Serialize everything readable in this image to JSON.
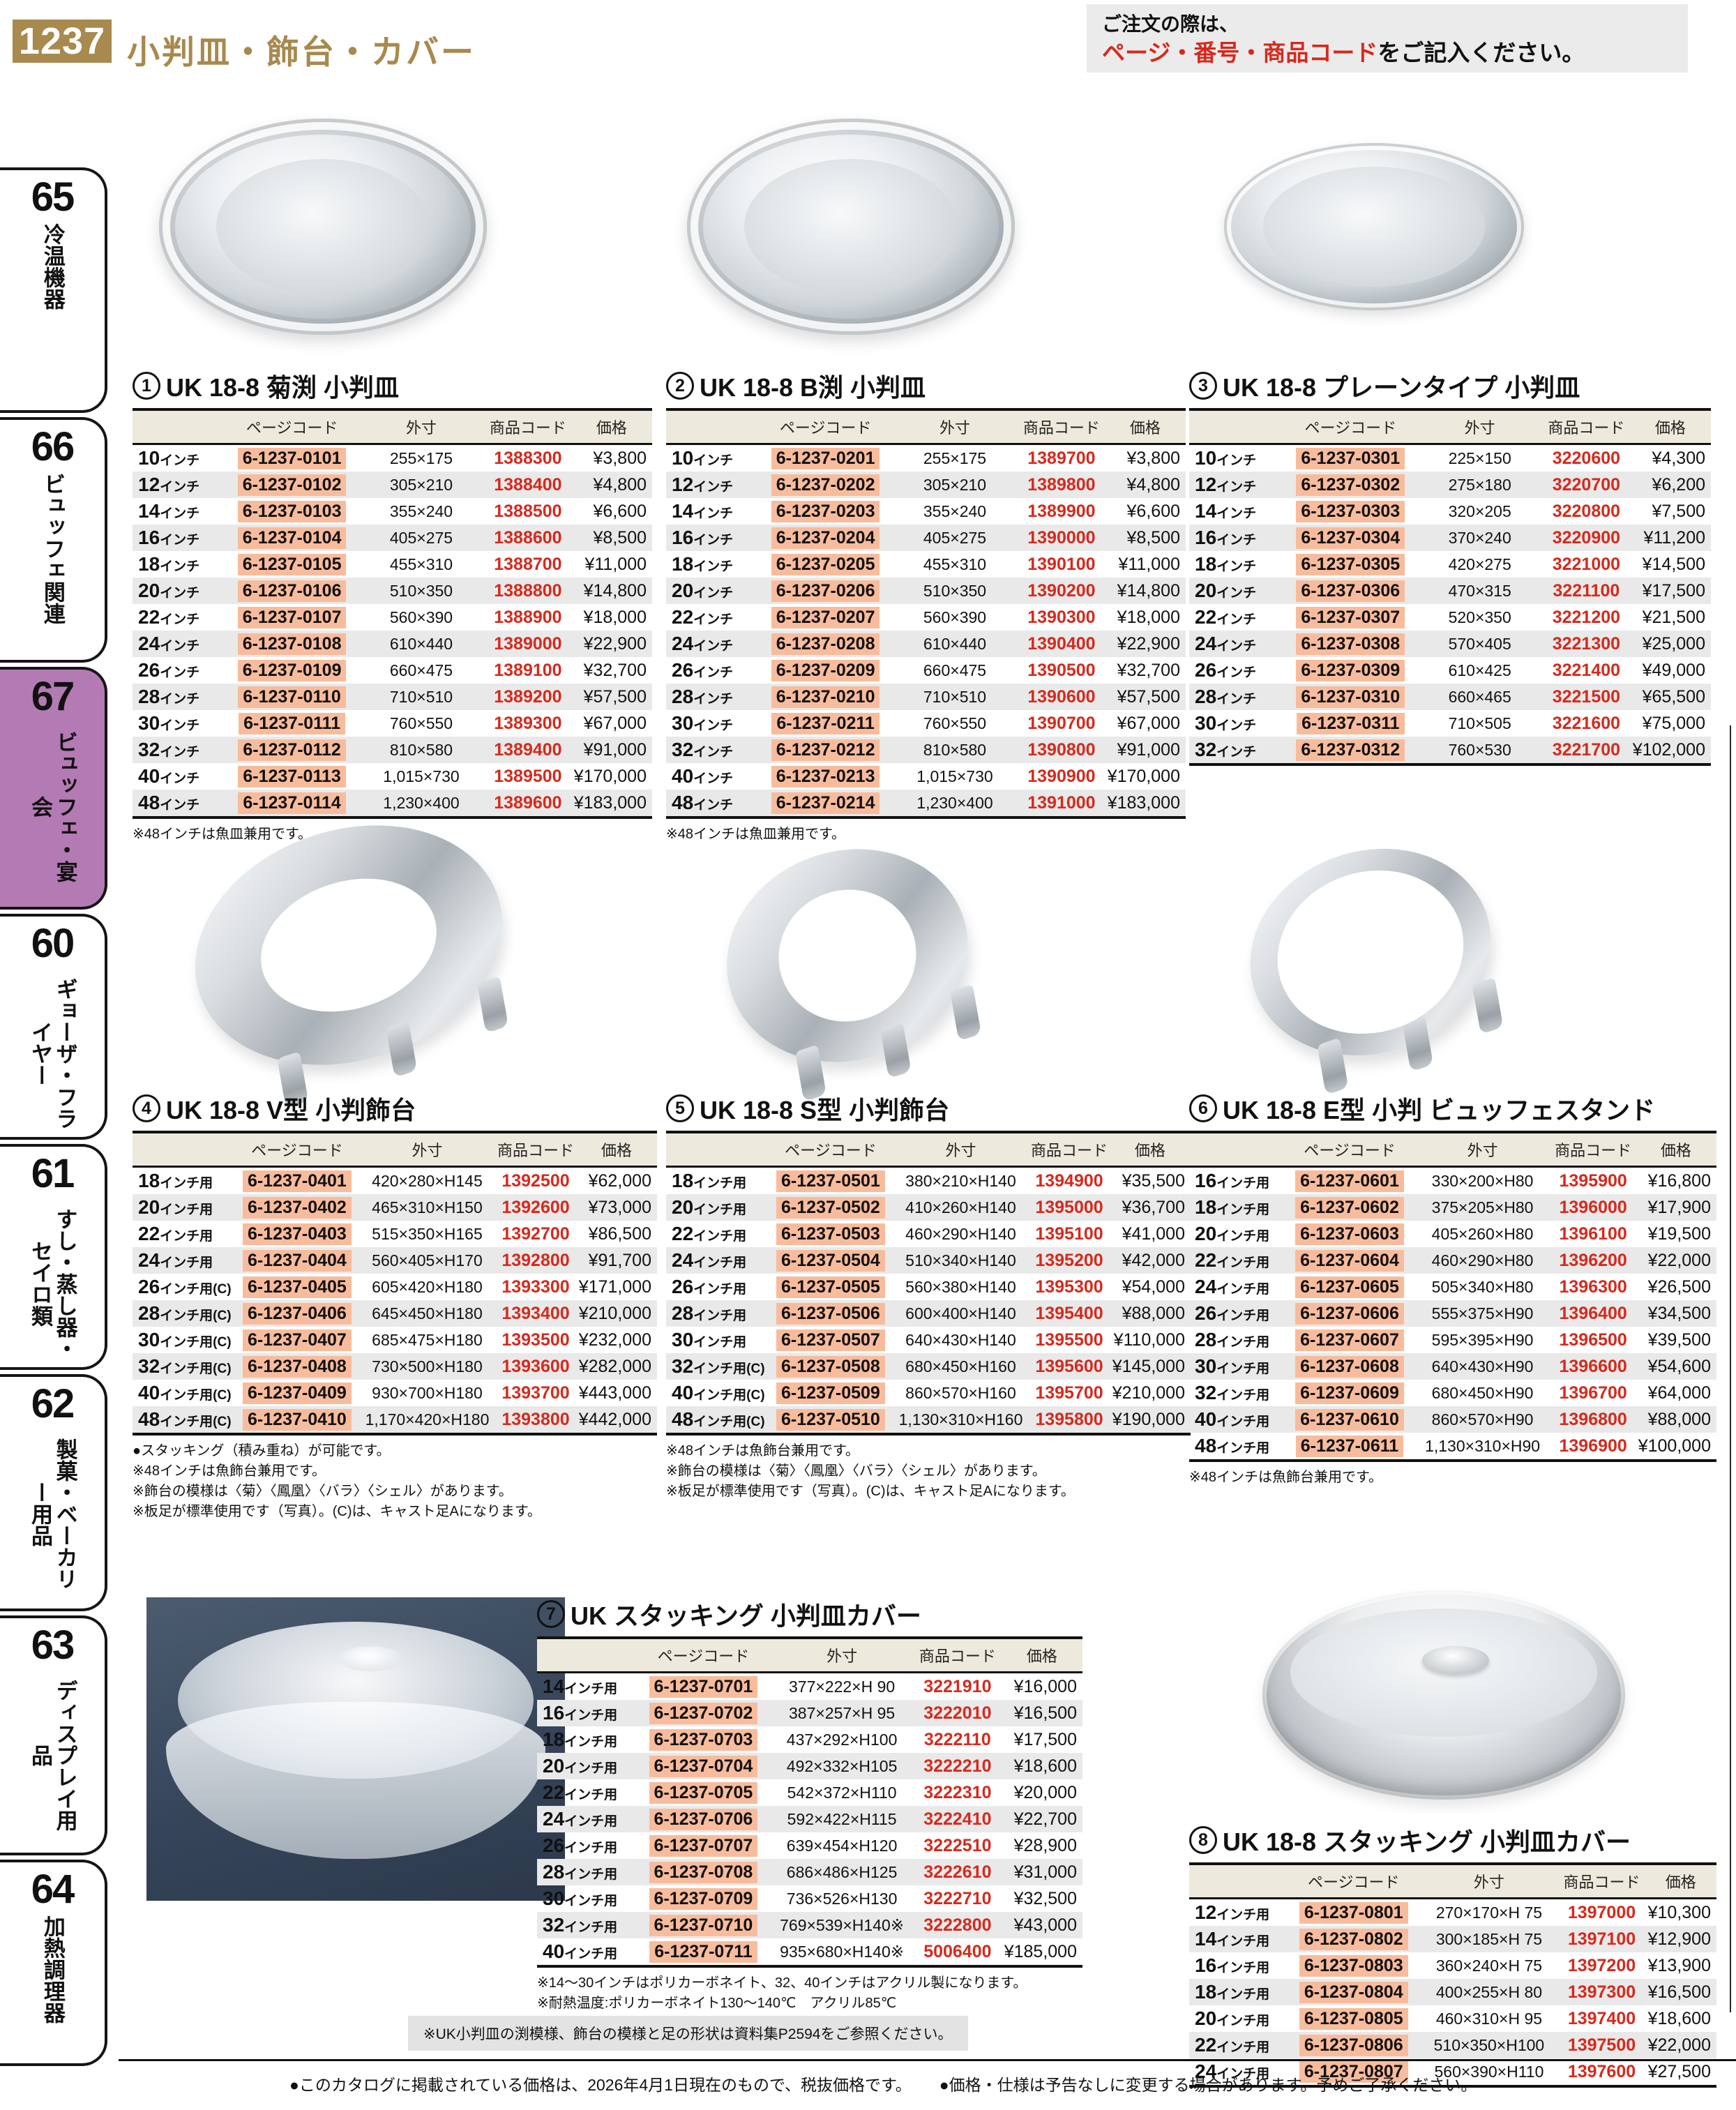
{
  "header": {
    "page_number": "1237",
    "title": "小判皿・飾台・カバー",
    "order_note_line1": "ご注文の際は、",
    "order_note_line2_red": "ページ・番号・商品コード",
    "order_note_line2_rest": "をご記入ください。"
  },
  "sidebar": {
    "items": [
      {
        "number": "65",
        "label": "冷温機器",
        "active": false
      },
      {
        "number": "66",
        "label": "ビュッフェ関連",
        "active": false
      },
      {
        "number": "67",
        "label": "ビュッフェ・宴会",
        "active": true
      },
      {
        "number": "60",
        "label": "ギョーザ・フライヤー",
        "active": false
      },
      {
        "number": "61",
        "label": "すし・蒸し器・セイロ類",
        "active": false
      },
      {
        "number": "62",
        "label": "製菓・ベーカリー用品",
        "active": false
      },
      {
        "number": "63",
        "label": "ディスプレイ用品",
        "active": false
      },
      {
        "number": "64",
        "label": "加熱調理器",
        "active": false
      }
    ]
  },
  "table_columns": [
    "ページコード",
    "外寸",
    "商品コード",
    "価格"
  ],
  "products": [
    {
      "number": "1",
      "title": "UK 18-8 菊渕 小判皿",
      "rows": [
        [
          "10インチ",
          "6-1237-0101",
          "255×175",
          "1388300",
          "¥3,800"
        ],
        [
          "12インチ",
          "6-1237-0102",
          "305×210",
          "1388400",
          "¥4,800"
        ],
        [
          "14インチ",
          "6-1237-0103",
          "355×240",
          "1388500",
          "¥6,600"
        ],
        [
          "16インチ",
          "6-1237-0104",
          "405×275",
          "1388600",
          "¥8,500"
        ],
        [
          "18インチ",
          "6-1237-0105",
          "455×310",
          "1388700",
          "¥11,000"
        ],
        [
          "20インチ",
          "6-1237-0106",
          "510×350",
          "1388800",
          "¥14,800"
        ],
        [
          "22インチ",
          "6-1237-0107",
          "560×390",
          "1388900",
          "¥18,000"
        ],
        [
          "24インチ",
          "6-1237-0108",
          "610×440",
          "1389000",
          "¥22,900"
        ],
        [
          "26インチ",
          "6-1237-0109",
          "660×475",
          "1389100",
          "¥32,700"
        ],
        [
          "28インチ",
          "6-1237-0110",
          "710×510",
          "1389200",
          "¥57,500"
        ],
        [
          "30インチ",
          "6-1237-0111",
          "760×550",
          "1389300",
          "¥67,000"
        ],
        [
          "32インチ",
          "6-1237-0112",
          "810×580",
          "1389400",
          "¥91,000"
        ],
        [
          "40インチ",
          "6-1237-0113",
          "1,015×730",
          "1389500",
          "¥170,000"
        ],
        [
          "48インチ",
          "6-1237-0114",
          "1,230×400",
          "1389600",
          "¥183,000"
        ]
      ],
      "notes": [
        "※48インチは魚皿兼用です。"
      ]
    },
    {
      "number": "2",
      "title": "UK 18-8 B渕 小判皿",
      "rows": [
        [
          "10インチ",
          "6-1237-0201",
          "255×175",
          "1389700",
          "¥3,800"
        ],
        [
          "12インチ",
          "6-1237-0202",
          "305×210",
          "1389800",
          "¥4,800"
        ],
        [
          "14インチ",
          "6-1237-0203",
          "355×240",
          "1389900",
          "¥6,600"
        ],
        [
          "16インチ",
          "6-1237-0204",
          "405×275",
          "1390000",
          "¥8,500"
        ],
        [
          "18インチ",
          "6-1237-0205",
          "455×310",
          "1390100",
          "¥11,000"
        ],
        [
          "20インチ",
          "6-1237-0206",
          "510×350",
          "1390200",
          "¥14,800"
        ],
        [
          "22インチ",
          "6-1237-0207",
          "560×390",
          "1390300",
          "¥18,000"
        ],
        [
          "24インチ",
          "6-1237-0208",
          "610×440",
          "1390400",
          "¥22,900"
        ],
        [
          "26インチ",
          "6-1237-0209",
          "660×475",
          "1390500",
          "¥32,700"
        ],
        [
          "28インチ",
          "6-1237-0210",
          "710×510",
          "1390600",
          "¥57,500"
        ],
        [
          "30インチ",
          "6-1237-0211",
          "760×550",
          "1390700",
          "¥67,000"
        ],
        [
          "32インチ",
          "6-1237-0212",
          "810×580",
          "1390800",
          "¥91,000"
        ],
        [
          "40インチ",
          "6-1237-0213",
          "1,015×730",
          "1390900",
          "¥170,000"
        ],
        [
          "48インチ",
          "6-1237-0214",
          "1,230×400",
          "1391000",
          "¥183,000"
        ]
      ],
      "notes": [
        "※48インチは魚皿兼用です。"
      ]
    },
    {
      "number": "3",
      "title": "UK 18-8 プレーンタイプ 小判皿",
      "rows": [
        [
          "10インチ",
          "6-1237-0301",
          "225×150",
          "3220600",
          "¥4,300"
        ],
        [
          "12インチ",
          "6-1237-0302",
          "275×180",
          "3220700",
          "¥6,200"
        ],
        [
          "14インチ",
          "6-1237-0303",
          "320×205",
          "3220800",
          "¥7,500"
        ],
        [
          "16インチ",
          "6-1237-0304",
          "370×240",
          "3220900",
          "¥11,200"
        ],
        [
          "18インチ",
          "6-1237-0305",
          "420×275",
          "3221000",
          "¥14,500"
        ],
        [
          "20インチ",
          "6-1237-0306",
          "470×315",
          "3221100",
          "¥17,500"
        ],
        [
          "22インチ",
          "6-1237-0307",
          "520×350",
          "3221200",
          "¥21,500"
        ],
        [
          "24インチ",
          "6-1237-0308",
          "570×405",
          "3221300",
          "¥25,000"
        ],
        [
          "26インチ",
          "6-1237-0309",
          "610×425",
          "3221400",
          "¥49,000"
        ],
        [
          "28インチ",
          "6-1237-0310",
          "660×465",
          "3221500",
          "¥65,500"
        ],
        [
          "30インチ",
          "6-1237-0311",
          "710×505",
          "3221600",
          "¥75,000"
        ],
        [
          "32インチ",
          "6-1237-0312",
          "760×530",
          "3221700",
          "¥102,000"
        ]
      ],
      "notes": []
    },
    {
      "number": "4",
      "title": "UK 18-8 V型 小判飾台",
      "rows": [
        [
          "18インチ用",
          "6-1237-0401",
          "420×280×H145",
          "1392500",
          "¥62,000"
        ],
        [
          "20インチ用",
          "6-1237-0402",
          "465×310×H150",
          "1392600",
          "¥73,000"
        ],
        [
          "22インチ用",
          "6-1237-0403",
          "515×350×H165",
          "1392700",
          "¥86,500"
        ],
        [
          "24インチ用",
          "6-1237-0404",
          "560×405×H170",
          "1392800",
          "¥91,700"
        ],
        [
          "26インチ用(C)",
          "6-1237-0405",
          "605×420×H180",
          "1393300",
          "¥171,000"
        ],
        [
          "28インチ用(C)",
          "6-1237-0406",
          "645×450×H180",
          "1393400",
          "¥210,000"
        ],
        [
          "30インチ用(C)",
          "6-1237-0407",
          "685×475×H180",
          "1393500",
          "¥232,000"
        ],
        [
          "32インチ用(C)",
          "6-1237-0408",
          "730×500×H180",
          "1393600",
          "¥282,000"
        ],
        [
          "40インチ用(C)",
          "6-1237-0409",
          "930×700×H180",
          "1393700",
          "¥443,000"
        ],
        [
          "48インチ用(C)",
          "6-1237-0410",
          "1,170×420×H180",
          "1393800",
          "¥442,000"
        ]
      ],
      "notes": [
        "●スタッキング（積み重ね）が可能です。",
        "※48インチは魚飾台兼用です。",
        "※飾台の模様は〈菊〉〈鳳凰〉〈バラ〉〈シェル〉があります。",
        "※板足が標準使用です（写真）。(C)は、キャスト足Aになります。"
      ]
    },
    {
      "number": "5",
      "title": "UK 18-8 S型 小判飾台",
      "rows": [
        [
          "18インチ用",
          "6-1237-0501",
          "380×210×H140",
          "1394900",
          "¥35,500"
        ],
        [
          "20インチ用",
          "6-1237-0502",
          "410×260×H140",
          "1395000",
          "¥36,700"
        ],
        [
          "22インチ用",
          "6-1237-0503",
          "460×290×H140",
          "1395100",
          "¥41,000"
        ],
        [
          "24インチ用",
          "6-1237-0504",
          "510×340×H140",
          "1395200",
          "¥42,000"
        ],
        [
          "26インチ用",
          "6-1237-0505",
          "560×380×H140",
          "1395300",
          "¥54,000"
        ],
        [
          "28インチ用",
          "6-1237-0506",
          "600×400×H140",
          "1395400",
          "¥88,000"
        ],
        [
          "30インチ用",
          "6-1237-0507",
          "640×430×H140",
          "1395500",
          "¥110,000"
        ],
        [
          "32インチ用(C)",
          "6-1237-0508",
          "680×450×H160",
          "1395600",
          "¥145,000"
        ],
        [
          "40インチ用(C)",
          "6-1237-0509",
          "860×570×H160",
          "1395700",
          "¥210,000"
        ],
        [
          "48インチ用(C)",
          "6-1237-0510",
          "1,130×310×H160",
          "1395800",
          "¥190,000"
        ]
      ],
      "notes": [
        "※48インチは魚飾台兼用です。",
        "※飾台の模様は〈菊〉〈鳳凰〉〈バラ〉〈シェル〉があります。",
        "※板足が標準使用です（写真）。(C)は、キャスト足Aになります。"
      ]
    },
    {
      "number": "6",
      "title": "UK 18-8 E型 小判 ビュッフェスタンド",
      "rows": [
        [
          "16インチ用",
          "6-1237-0601",
          "330×200×H80",
          "1395900",
          "¥16,800"
        ],
        [
          "18インチ用",
          "6-1237-0602",
          "375×205×H80",
          "1396000",
          "¥17,900"
        ],
        [
          "20インチ用",
          "6-1237-0603",
          "405×260×H80",
          "1396100",
          "¥19,500"
        ],
        [
          "22インチ用",
          "6-1237-0604",
          "460×290×H80",
          "1396200",
          "¥22,000"
        ],
        [
          "24インチ用",
          "6-1237-0605",
          "505×340×H80",
          "1396300",
          "¥26,500"
        ],
        [
          "26インチ用",
          "6-1237-0606",
          "555×375×H90",
          "1396400",
          "¥34,500"
        ],
        [
          "28インチ用",
          "6-1237-0607",
          "595×395×H90",
          "1396500",
          "¥39,500"
        ],
        [
          "30インチ用",
          "6-1237-0608",
          "640×430×H90",
          "1396600",
          "¥54,600"
        ],
        [
          "32インチ用",
          "6-1237-0609",
          "680×450×H90",
          "1396700",
          "¥64,000"
        ],
        [
          "40インチ用",
          "6-1237-0610",
          "860×570×H90",
          "1396800",
          "¥88,000"
        ],
        [
          "48インチ用",
          "6-1237-0611",
          "1,130×310×H90",
          "1396900",
          "¥100,000"
        ]
      ],
      "notes": [
        "※48インチは魚飾台兼用です。"
      ]
    },
    {
      "number": "7",
      "title": "UK スタッキング 小判皿カバー",
      "rows": [
        [
          "14インチ用",
          "6-1237-0701",
          "377×222×H 90",
          "3221910",
          "¥16,000"
        ],
        [
          "16インチ用",
          "6-1237-0702",
          "387×257×H 95",
          "3222010",
          "¥16,500"
        ],
        [
          "18インチ用",
          "6-1237-0703",
          "437×292×H100",
          "3222110",
          "¥17,500"
        ],
        [
          "20インチ用",
          "6-1237-0704",
          "492×332×H105",
          "3222210",
          "¥18,600"
        ],
        [
          "22インチ用",
          "6-1237-0705",
          "542×372×H110",
          "3222310",
          "¥20,000"
        ],
        [
          "24インチ用",
          "6-1237-0706",
          "592×422×H115",
          "3222410",
          "¥22,700"
        ],
        [
          "26インチ用",
          "6-1237-0707",
          "639×454×H120",
          "3222510",
          "¥28,900"
        ],
        [
          "28インチ用",
          "6-1237-0708",
          "686×486×H125",
          "3222610",
          "¥31,000"
        ],
        [
          "30インチ用",
          "6-1237-0709",
          "736×526×H130",
          "3222710",
          "¥32,500"
        ],
        [
          "32インチ用",
          "6-1237-0710",
          "769×539×H140※",
          "3222800",
          "¥43,000"
        ],
        [
          "40インチ用",
          "6-1237-0711",
          "935×680×H140※",
          "5006400",
          "¥185,000"
        ]
      ],
      "notes": [
        "※14〜30インチはポリカーボネイト、32、40インチはアクリル製になります。",
        "※耐熱温度:ポリカーボネイト130〜140℃　アクリル85℃"
      ]
    },
    {
      "number": "8",
      "title": "UK 18-8 スタッキング 小判皿カバー",
      "rows": [
        [
          "12インチ用",
          "6-1237-0801",
          "270×170×H 75",
          "1397000",
          "¥10,300"
        ],
        [
          "14インチ用",
          "6-1237-0802",
          "300×185×H 75",
          "1397100",
          "¥12,900"
        ],
        [
          "16インチ用",
          "6-1237-0803",
          "360×240×H 75",
          "1397200",
          "¥13,900"
        ],
        [
          "18インチ用",
          "6-1237-0804",
          "400×255×H 80",
          "1397300",
          "¥16,500"
        ],
        [
          "20インチ用",
          "6-1237-0805",
          "460×310×H 95",
          "1397400",
          "¥18,600"
        ],
        [
          "22インチ用",
          "6-1237-0806",
          "510×350×H100",
          "1397500",
          "¥22,000"
        ],
        [
          "24インチ用",
          "6-1237-0807",
          "560×390×H110",
          "1397600",
          "¥27,500"
        ]
      ],
      "notes": []
    }
  ],
  "footer": {
    "reference_note": "※UK小判皿の渕模様、飾台の模様と足の形状は資料集P2594をご参照ください。",
    "note1": "●このカタログに掲載されている価格は、2026年4月1日現在のもので、税抜価格です。",
    "note2": "●価格・仕様は予告なしに変更する場合があります。予めご了承ください。"
  },
  "colors": {
    "gold": "#a8894e",
    "code_red": "#d6291c",
    "highlight": "#f8bc9c",
    "tab_active": "#b47ab4"
  }
}
